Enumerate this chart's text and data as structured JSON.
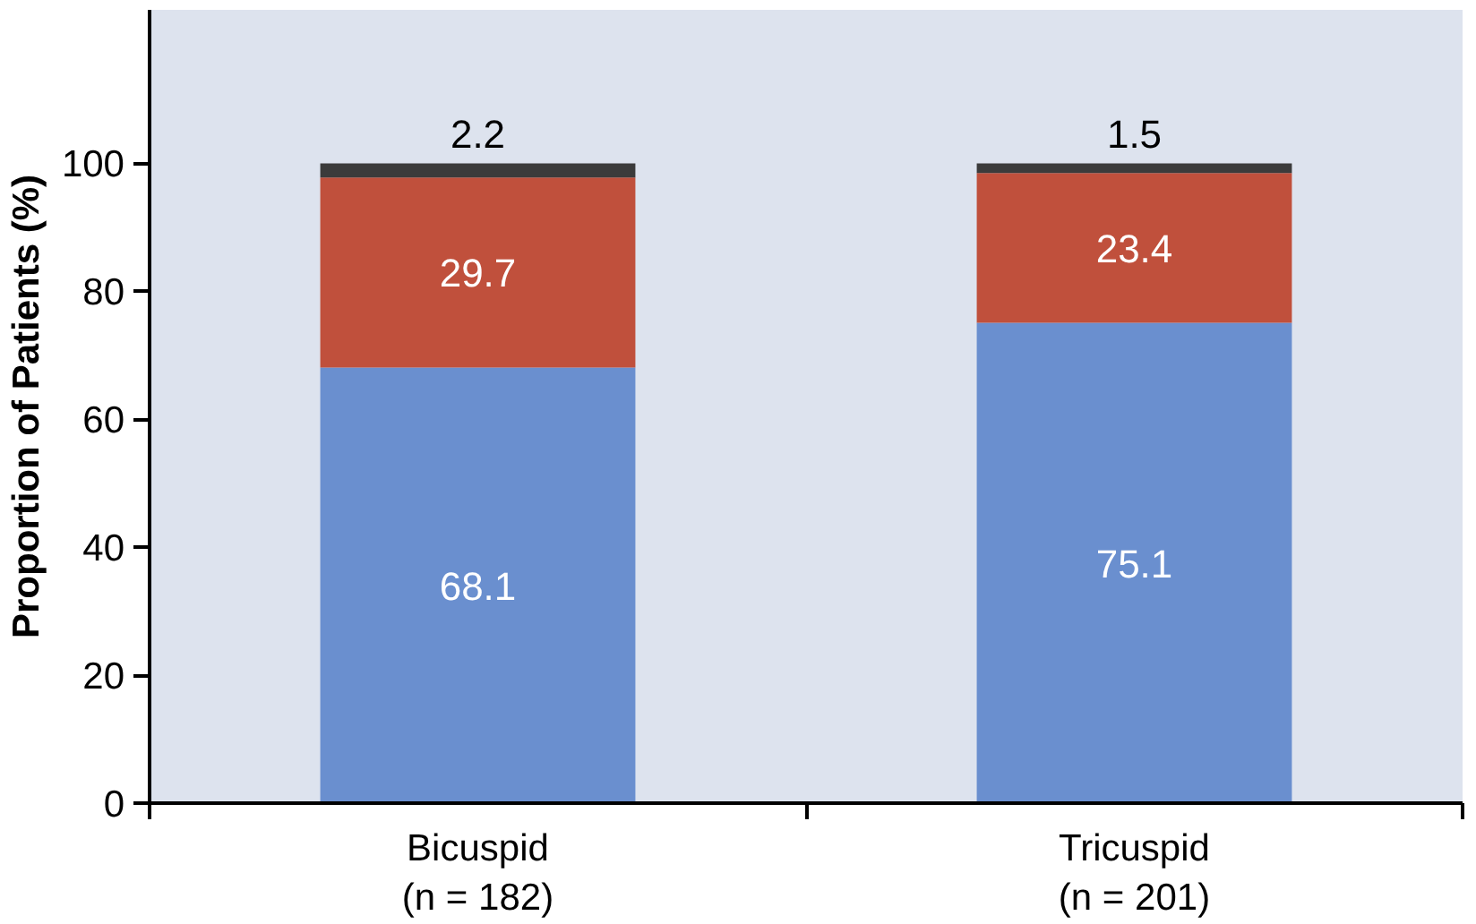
{
  "chart_data": {
    "type": "bar",
    "stacked": true,
    "ylabel": "Proportion of Patients (%)",
    "categories": [
      "Bicuspid\n(n = 182)",
      "Tricuspid\n(n = 201)"
    ],
    "series": [
      {
        "color": "#6a8fcf",
        "values": [
          68.1,
          75.1
        ]
      },
      {
        "color": "#c0503c",
        "values": [
          29.7,
          23.4
        ]
      },
      {
        "color": "#3b3b3b",
        "values": [
          2.2,
          1.5
        ]
      }
    ],
    "ylim": [
      0,
      124
    ],
    "yticks": [
      0,
      20,
      40,
      60,
      80,
      100
    ],
    "grid": false,
    "data_labels": true
  }
}
